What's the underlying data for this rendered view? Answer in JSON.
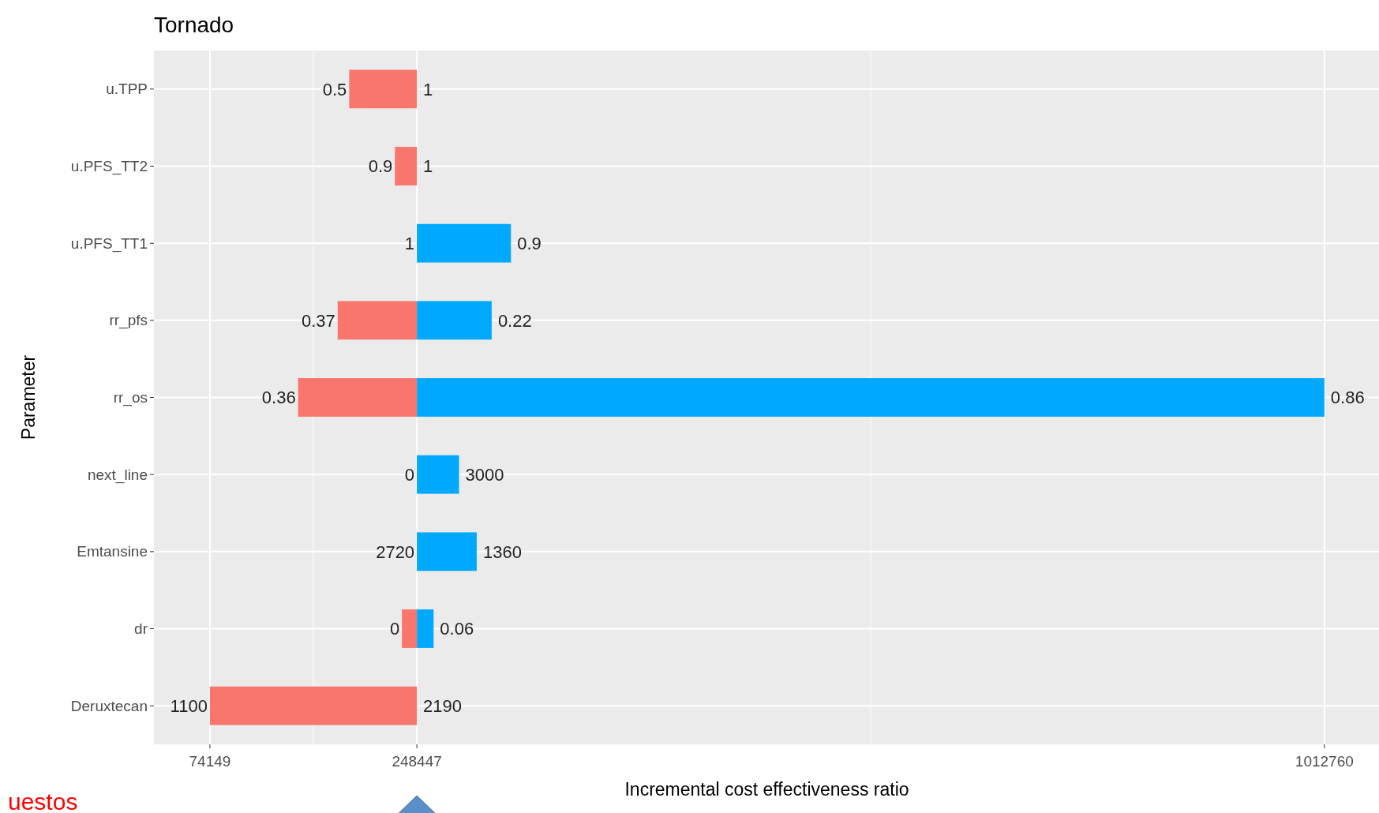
{
  "chart_data": {
    "type": "bar",
    "orientation": "horizontal",
    "title": "Tornado",
    "xlabel": "Incremental cost effectiveness ratio",
    "ylabel": "Parameter",
    "categories": [
      "u.TPP",
      "u.PFS_TT2",
      "u.PFS_TT1",
      "rr_pfs",
      "rr_os",
      "next_line",
      "Emtansine",
      "dr",
      "Deruxtecan"
    ],
    "series": [
      {
        "color": "#f8766d",
        "base": [
          248447,
          248447,
          null,
          248447,
          248447,
          null,
          null,
          248447,
          248447
        ],
        "values": [
          -57000,
          -18500,
          null,
          -66700,
          -100000,
          null,
          null,
          -12600,
          -174300
        ]
      },
      {
        "color": "#00a9ff",
        "base": [
          null,
          null,
          248447,
          248447,
          248447,
          248447,
          248447,
          248447,
          null
        ],
        "values": [
          null,
          null,
          79200,
          63000,
          764300,
          35500,
          50400,
          14100,
          null
        ]
      }
    ],
    "xlim": [
      27000,
      1059400
    ],
    "xticks": [
      74149,
      {
        "value": 161298,
        "label": null
      },
      248447,
      {
        "value": 630603,
        "label": null
      },
      1012760
    ],
    "grid": true,
    "annotations": [
      {
        "text": "0.5",
        "x": 191447,
        "y": "u.TPP"
      },
      {
        "text": "1",
        "x": 248447,
        "y": "u.TPP"
      },
      {
        "text": "0.9",
        "x": 229947,
        "y": "u.PFS_TT2"
      },
      {
        "text": "1",
        "x": 248447,
        "y": "u.PFS_TT2"
      },
      {
        "text": "1",
        "x": 248447,
        "y": "u.PFS_TT1"
      },
      {
        "text": "0.9",
        "x": 327647,
        "y": "u.PFS_TT1"
      },
      {
        "text": "0.37",
        "x": 181747,
        "y": "rr_pfs"
      },
      {
        "text": "0.22",
        "x": 311447,
        "y": "rr_pfs"
      },
      {
        "text": "0.36",
        "x": 148447,
        "y": "rr_os"
      },
      {
        "text": "0.86",
        "x": 1012747,
        "y": "rr_os"
      },
      {
        "text": "0",
        "x": 248447,
        "y": "next_line"
      },
      {
        "text": "3000",
        "x": 283947,
        "y": "next_line"
      },
      {
        "text": "2720",
        "x": 248447,
        "y": "Emtansine"
      },
      {
        "text": "1360",
        "x": 298847,
        "y": "Emtansine"
      },
      {
        "text": "0",
        "x": 235847,
        "y": "dr"
      },
      {
        "text": "0.06",
        "x": 262547,
        "y": "dr"
      },
      {
        "text": "1100",
        "x": 74147,
        "y": "Deruxtecan"
      },
      {
        "text": "2190",
        "x": 248447,
        "y": "Deruxtecan"
      },
      "uestos"
    ]
  }
}
